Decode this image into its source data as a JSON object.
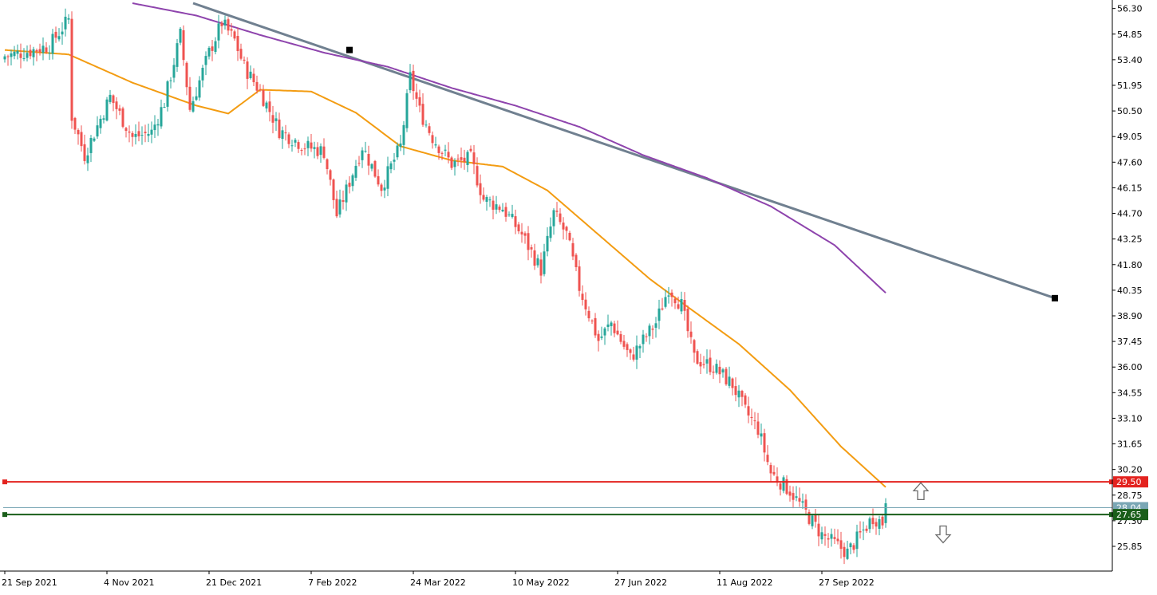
{
  "chart_data": {
    "type": "candlestick",
    "title": "",
    "ylim": [
      24.45,
      56.6
    ],
    "y_ticks": [
      "56.30",
      "54.85",
      "53.40",
      "51.95",
      "50.50",
      "49.05",
      "47.60",
      "46.15",
      "44.70",
      "43.25",
      "41.80",
      "40.35",
      "38.90",
      "37.45",
      "36.00",
      "34.55",
      "33.10",
      "31.65",
      "30.20",
      "28.75",
      "27.30",
      "25.85"
    ],
    "x_ticks": [
      {
        "i": 0,
        "label": "21 Sep 2021"
      },
      {
        "i": 32,
        "label": "4 Nov 2021"
      },
      {
        "i": 64,
        "label": "21 Dec 2021"
      },
      {
        "i": 96,
        "label": "7 Feb 2022"
      },
      {
        "i": 128,
        "label": "24 Mar 2022"
      },
      {
        "i": 160,
        "label": "10 May 2022"
      },
      {
        "i": 192,
        "label": "27 Jun 2022"
      },
      {
        "i": 224,
        "label": "11 Aug 2022"
      },
      {
        "i": 256,
        "label": "27 Sep 2022"
      }
    ],
    "close_anchors": [
      [
        0,
        53.6
      ],
      [
        8,
        53.9
      ],
      [
        14,
        54.2
      ],
      [
        20,
        55.7
      ],
      [
        21,
        50.2
      ],
      [
        25,
        48.0
      ],
      [
        33,
        51.3
      ],
      [
        40,
        49.0
      ],
      [
        46,
        49.3
      ],
      [
        50,
        51.0
      ],
      [
        55,
        54.8
      ],
      [
        58,
        50.6
      ],
      [
        64,
        53.8
      ],
      [
        68,
        55.5
      ],
      [
        72,
        54.5
      ],
      [
        75,
        53.0
      ],
      [
        80,
        51.6
      ],
      [
        86,
        49.4
      ],
      [
        94,
        48.5
      ],
      [
        100,
        48.2
      ],
      [
        104,
        44.6
      ],
      [
        107,
        46.0
      ],
      [
        112,
        48.5
      ],
      [
        118,
        46.2
      ],
      [
        124,
        48.5
      ],
      [
        127,
        52.4
      ],
      [
        130,
        50.5
      ],
      [
        134,
        49.0
      ],
      [
        140,
        47.5
      ],
      [
        146,
        47.8
      ],
      [
        150,
        45.5
      ],
      [
        156,
        45.0
      ],
      [
        162,
        43.5
      ],
      [
        168,
        41.5
      ],
      [
        172,
        44.7
      ],
      [
        176,
        43.5
      ],
      [
        180,
        40.5
      ],
      [
        186,
        37.5
      ],
      [
        190,
        38.5
      ],
      [
        196,
        36.5
      ],
      [
        200,
        37.5
      ],
      [
        204,
        38.5
      ],
      [
        208,
        40.5
      ],
      [
        212,
        39.5
      ],
      [
        216,
        36.5
      ],
      [
        222,
        36.0
      ],
      [
        228,
        35.0
      ],
      [
        232,
        33.5
      ],
      [
        236,
        32.5
      ],
      [
        240,
        30.0
      ],
      [
        246,
        29.0
      ],
      [
        252,
        27.5
      ],
      [
        256,
        26.5
      ],
      [
        260,
        26.0
      ],
      [
        264,
        25.5
      ],
      [
        268,
        26.5
      ],
      [
        272,
        27.5
      ],
      [
        275,
        27.2
      ],
      [
        276,
        28.6
      ]
    ],
    "series": [
      {
        "color": "#26a69a",
        "values": [],
        "role": "bull-candle"
      },
      {
        "color": "#ef5350",
        "values": [],
        "role": "bear-candle"
      }
    ],
    "moving_average_orange": {
      "color": "#f39c12",
      "points": [
        [
          0,
          53.95
        ],
        [
          20,
          53.7
        ],
        [
          40,
          52.1
        ],
        [
          60,
          50.8
        ],
        [
          70,
          50.35
        ],
        [
          80,
          51.7
        ],
        [
          96,
          51.6
        ],
        [
          110,
          50.4
        ],
        [
          124,
          48.5
        ],
        [
          140,
          47.7
        ],
        [
          156,
          47.35
        ],
        [
          170,
          46.0
        ],
        [
          186,
          43.5
        ],
        [
          202,
          41.0
        ],
        [
          214,
          39.4
        ],
        [
          230,
          37.3
        ],
        [
          246,
          34.7
        ],
        [
          262,
          31.5
        ],
        [
          276,
          29.2
        ]
      ]
    },
    "moving_average_purple": {
      "color": "#8e44ad",
      "points": [
        [
          40,
          56.6
        ],
        [
          60,
          55.9
        ],
        [
          80,
          54.8
        ],
        [
          100,
          53.8
        ],
        [
          120,
          53.0
        ],
        [
          140,
          51.8
        ],
        [
          160,
          50.8
        ],
        [
          180,
          49.6
        ],
        [
          200,
          48.0
        ],
        [
          220,
          46.7
        ],
        [
          240,
          45.1
        ],
        [
          260,
          42.9
        ],
        [
          276,
          40.2
        ]
      ]
    },
    "trendline": {
      "color": "#708090",
      "points": [
        [
          59,
          56.6
        ],
        [
          329,
          39.9
        ]
      ],
      "handles": [
        [
          108,
          53.95
        ],
        [
          329,
          39.9
        ]
      ]
    },
    "horizontal_lines": [
      {
        "value": 29.5,
        "label": "29.50",
        "color": "#e3231f"
      },
      {
        "value": 28.04,
        "label": "28.04",
        "color": "#7aa7b5"
      },
      {
        "value": 27.65,
        "label": "27.65",
        "color": "#1a5e1a"
      }
    ],
    "arrows": [
      {
        "direction": "up",
        "i": 287,
        "value": 28.95
      },
      {
        "direction": "down",
        "i": 294,
        "value": 26.55
      }
    ],
    "grid": false
  }
}
